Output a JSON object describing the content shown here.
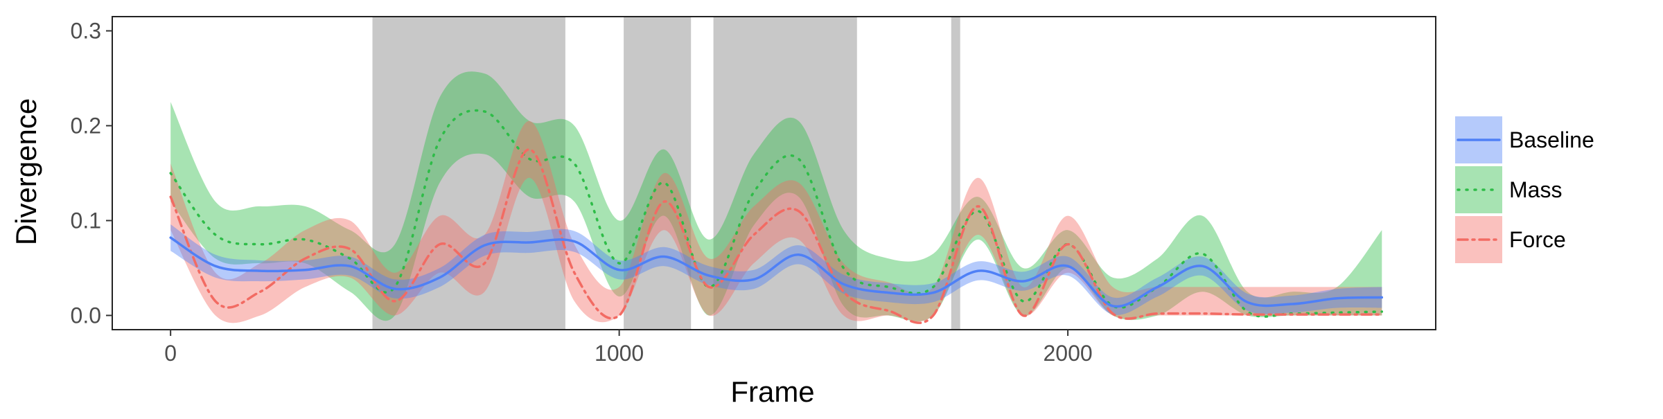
{
  "chart_data": {
    "type": "line",
    "xlabel": "Frame",
    "ylabel": "Divergence",
    "xlim": [
      -130,
      2820
    ],
    "ylim": [
      -0.015,
      0.315
    ],
    "x_ticks": [
      0,
      1000,
      2000
    ],
    "x_tick_labels": [
      "0",
      "1000",
      "2000"
    ],
    "y_ticks": [
      0.0,
      0.1,
      0.2,
      0.3
    ],
    "y_tick_labels": [
      "0.0",
      "0.1",
      "0.2",
      "0.3"
    ],
    "grid": false,
    "legend_position": "right",
    "shaded_regions": [
      [
        450,
        880
      ],
      [
        1010,
        1160
      ],
      [
        1210,
        1530
      ],
      [
        1740,
        1760
      ]
    ],
    "x": [
      0,
      100,
      200,
      300,
      400,
      500,
      600,
      700,
      800,
      900,
      1000,
      1100,
      1200,
      1300,
      1400,
      1500,
      1600,
      1700,
      1800,
      1900,
      2000,
      2100,
      2200,
      2300,
      2400,
      2500,
      2600,
      2700
    ],
    "series": [
      {
        "name": "Baseline",
        "color": "#4f80f6",
        "dash": "solid",
        "values": [
          0.082,
          0.052,
          0.047,
          0.048,
          0.052,
          0.028,
          0.04,
          0.074,
          0.077,
          0.078,
          0.048,
          0.062,
          0.042,
          0.038,
          0.064,
          0.033,
          0.024,
          0.024,
          0.047,
          0.036,
          0.052,
          0.01,
          0.03,
          0.052,
          0.014,
          0.012,
          0.018,
          0.019
        ],
        "lower": [
          0.068,
          0.04,
          0.036,
          0.038,
          0.042,
          0.018,
          0.03,
          0.063,
          0.066,
          0.067,
          0.038,
          0.052,
          0.032,
          0.028,
          0.054,
          0.023,
          0.014,
          0.014,
          0.037,
          0.026,
          0.042,
          0.001,
          0.02,
          0.042,
          0.005,
          0.003,
          0.008,
          0.008
        ],
        "upper": [
          0.096,
          0.064,
          0.058,
          0.058,
          0.062,
          0.038,
          0.05,
          0.085,
          0.088,
          0.089,
          0.058,
          0.072,
          0.052,
          0.048,
          0.074,
          0.043,
          0.034,
          0.034,
          0.057,
          0.046,
          0.062,
          0.019,
          0.04,
          0.062,
          0.023,
          0.021,
          0.028,
          0.03
        ]
      },
      {
        "name": "Mass",
        "color": "#2ebc48",
        "dash": "dotted",
        "values": [
          0.15,
          0.085,
          0.075,
          0.08,
          0.06,
          0.03,
          0.185,
          0.215,
          0.165,
          0.16,
          0.055,
          0.14,
          0.03,
          0.13,
          0.165,
          0.05,
          0.03,
          0.03,
          0.11,
          0.015,
          0.075,
          0.01,
          0.03,
          0.065,
          0.004,
          0.002,
          0.003,
          0.004
        ],
        "lower": [
          0.12,
          0.06,
          0.055,
          0.055,
          0.025,
          0.0,
          0.14,
          0.17,
          0.125,
          0.12,
          0.02,
          0.105,
          0.0,
          0.095,
          0.125,
          0.01,
          0.0,
          0.0,
          0.08,
          0.0,
          0.05,
          0.0,
          0.0,
          0.025,
          0.0,
          0.0,
          0.0,
          0.0
        ],
        "upper": [
          0.225,
          0.12,
          0.115,
          0.115,
          0.09,
          0.075,
          0.23,
          0.255,
          0.205,
          0.2,
          0.1,
          0.175,
          0.08,
          0.17,
          0.205,
          0.09,
          0.06,
          0.065,
          0.125,
          0.05,
          0.09,
          0.04,
          0.06,
          0.105,
          0.025,
          0.025,
          0.03,
          0.09
        ]
      },
      {
        "name": "Force",
        "color": "#f26b63",
        "dash": "dashdot",
        "values": [
          0.125,
          0.015,
          0.025,
          0.06,
          0.07,
          0.015,
          0.075,
          0.055,
          0.175,
          0.045,
          0.0,
          0.12,
          0.03,
          0.085,
          0.11,
          0.025,
          0.005,
          0.0,
          0.115,
          0.0,
          0.075,
          0.002,
          0.002,
          0.002,
          0.001,
          0.001,
          0.001,
          0.001
        ],
        "lower": [
          0.09,
          0.0,
          0.0,
          0.03,
          0.04,
          0.0,
          0.045,
          0.025,
          0.145,
          0.015,
          0.0,
          0.09,
          0.0,
          0.055,
          0.08,
          0.0,
          0.0,
          0.0,
          0.085,
          0.0,
          0.045,
          0.0,
          0.0,
          0.0,
          0.0,
          0.0,
          0.0,
          0.0
        ],
        "upper": [
          0.16,
          0.045,
          0.055,
          0.09,
          0.1,
          0.045,
          0.105,
          0.085,
          0.205,
          0.075,
          0.03,
          0.15,
          0.06,
          0.115,
          0.14,
          0.055,
          0.035,
          0.03,
          0.145,
          0.03,
          0.105,
          0.03,
          0.03,
          0.03,
          0.03,
          0.03,
          0.03,
          0.03
        ]
      }
    ]
  }
}
